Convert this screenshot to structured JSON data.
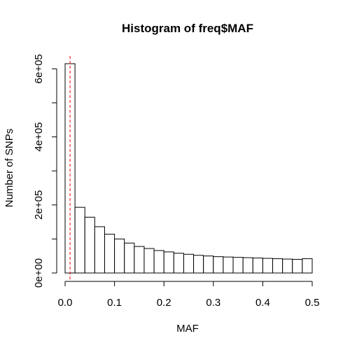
{
  "chart_data": {
    "type": "bar",
    "title": "Histogram of freq$MAF",
    "xlabel": "MAF",
    "ylabel": "Number of SNPs",
    "bin_edges": [
      0.0,
      0.02,
      0.04,
      0.06,
      0.08,
      0.1,
      0.12,
      0.14,
      0.16,
      0.18,
      0.2,
      0.22,
      0.24,
      0.26,
      0.28,
      0.3,
      0.32,
      0.34,
      0.36,
      0.38,
      0.4,
      0.42,
      0.44,
      0.46,
      0.48,
      0.5
    ],
    "values": [
      615000,
      193000,
      164000,
      136000,
      114000,
      100000,
      88000,
      78000,
      72000,
      66000,
      62000,
      58000,
      55000,
      52000,
      50000,
      48000,
      47000,
      46000,
      45000,
      44000,
      43000,
      42000,
      41000,
      40000,
      42000
    ],
    "xlim": [
      0,
      0.5
    ],
    "ylim": [
      0,
      620000
    ],
    "x_ticks": [
      0.0,
      0.1,
      0.2,
      0.3,
      0.4,
      0.5
    ],
    "x_tick_labels": [
      "0.0",
      "0.1",
      "0.2",
      "0.3",
      "0.4",
      "0.5"
    ],
    "y_ticks": [
      0,
      200000,
      400000,
      600000
    ],
    "y_tick_labels": [
      "0e+00",
      "2e+05",
      "4e+05",
      "6e+05"
    ],
    "y_minor_ticks": [
      100000,
      300000,
      500000
    ],
    "reference_line": {
      "x": 0.01,
      "color": "#ff0000",
      "style": "dashed"
    },
    "grid": false
  }
}
